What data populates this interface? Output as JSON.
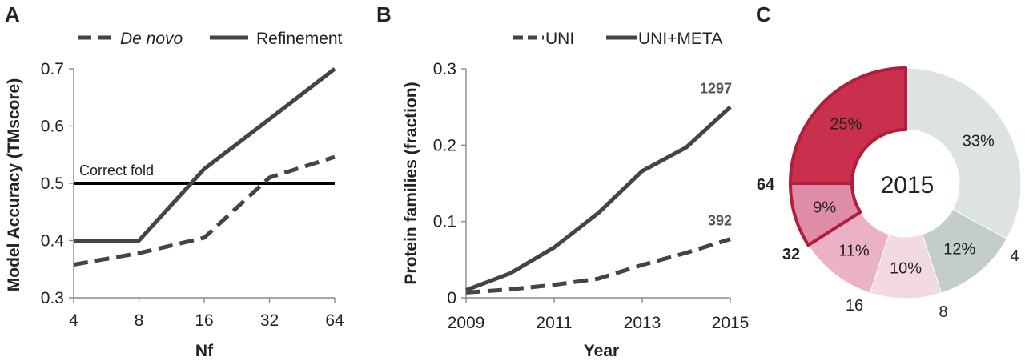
{
  "panels": {
    "a": "A",
    "b": "B",
    "c": "C"
  },
  "chart_data": [
    {
      "type": "line",
      "x": [
        4,
        8,
        16,
        32,
        64
      ],
      "x_scale": "log2",
      "xticks": [
        "4",
        "8",
        "16",
        "32",
        "64"
      ],
      "yticks": [
        "0.3",
        "0.4",
        "0.5",
        "0.6",
        "0.7"
      ],
      "ylim": [
        0.3,
        0.7
      ],
      "xlabel": "Nf",
      "ylabel": "Model Accuracy (TMscore)",
      "legend_position": "top",
      "series": [
        {
          "name": "De novo",
          "style": "dashed",
          "color": "#444444",
          "values": [
            0.358,
            0.378,
            0.405,
            0.51,
            0.546
          ]
        },
        {
          "name": "Refinement",
          "style": "solid",
          "color": "#444444",
          "values": [
            0.4,
            0.4,
            0.525,
            0.612,
            0.7
          ]
        }
      ],
      "reference_line": {
        "label": "Correct fold",
        "y": 0.5,
        "color": "#000000"
      }
    },
    {
      "type": "line",
      "x": [
        2009,
        2010,
        2011,
        2012,
        2013,
        2014,
        2015
      ],
      "xticks": [
        "2009",
        "2011",
        "2013",
        "2015"
      ],
      "yticks": [
        "0",
        "0.1",
        "0.2",
        "0.3"
      ],
      "ylim": [
        0,
        0.3
      ],
      "xlabel": "Year",
      "ylabel": "Protein families (fraction)",
      "legend_position": "top",
      "series": [
        {
          "name": "UNI",
          "style": "dashed",
          "color": "#444444",
          "values": [
            0.007,
            0.011,
            0.017,
            0.025,
            0.043,
            0.059,
            0.077
          ],
          "end_label": "392"
        },
        {
          "name": "UNI+META",
          "style": "solid",
          "color": "#444444",
          "values": [
            0.01,
            0.032,
            0.066,
            0.111,
            0.166,
            0.197,
            0.25
          ],
          "end_label": "1297"
        }
      ]
    },
    {
      "type": "pie",
      "center_label": "2015",
      "slices": [
        {
          "value": 33,
          "label": "33%",
          "color": "#dce3e2",
          "outer_label": "",
          "highlight": false
        },
        {
          "value": 12,
          "label": "12%",
          "color": "#c3cdcc",
          "outer_label": "4",
          "highlight": false
        },
        {
          "value": 10,
          "label": "10%",
          "color": "#f3d9e3",
          "outer_label": "8",
          "highlight": false
        },
        {
          "value": 11,
          "label": "11%",
          "color": "#ebb1c7",
          "outer_label": "16",
          "highlight": false
        },
        {
          "value": 9,
          "label": "9%",
          "color": "#df8ca9",
          "outer_label": "32",
          "highlight": true
        },
        {
          "value": 25,
          "label": "25%",
          "color": "#c9304d",
          "outer_label": "64",
          "highlight": true
        }
      ],
      "highlight_stroke": "#b01e3c"
    }
  ]
}
